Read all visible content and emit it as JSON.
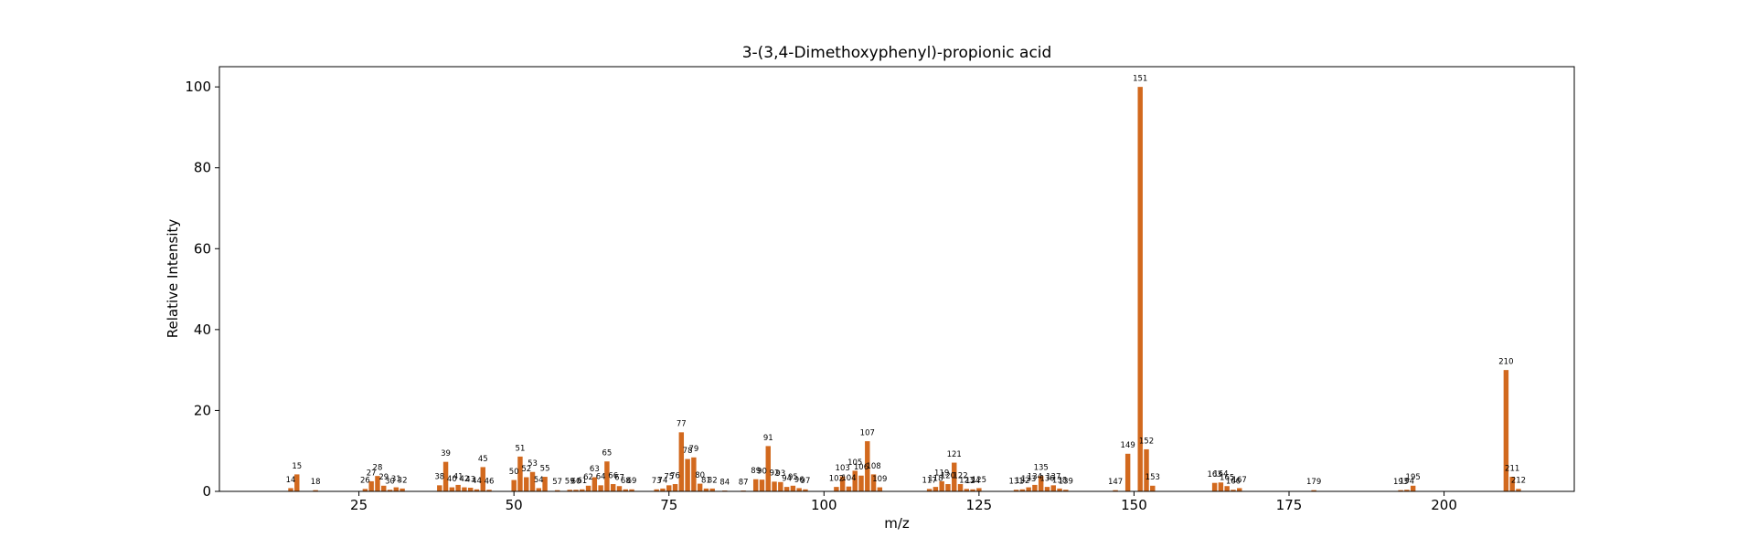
{
  "chart_data": {
    "type": "bar",
    "title": "3-(3,4-Dimethoxyphenyl)-propionic acid",
    "xlabel": "m/z",
    "ylabel": "Relative Intensity",
    "xlim": [
      2.5,
      221
    ],
    "ylim": [
      0,
      105
    ],
    "xticks": [
      25,
      50,
      75,
      100,
      125,
      150,
      175,
      200
    ],
    "yticks": [
      0,
      20,
      40,
      60,
      80,
      100
    ],
    "grid": false,
    "bar_color": "#d2691e",
    "series": [
      {
        "x": [
          14,
          15,
          18,
          26,
          27,
          28,
          29,
          30,
          31,
          32,
          38,
          39,
          40,
          41,
          42,
          43,
          44,
          45,
          46,
          50,
          51,
          52,
          53,
          54,
          55,
          57,
          59,
          60,
          61,
          62,
          63,
          64,
          65,
          66,
          67,
          68,
          69,
          73,
          74,
          75,
          76,
          77,
          78,
          79,
          80,
          81,
          82,
          84,
          87,
          89,
          90,
          91,
          92,
          93,
          94,
          95,
          96,
          97,
          102,
          103,
          104,
          105,
          106,
          107,
          108,
          109,
          117,
          118,
          119,
          120,
          121,
          122,
          123,
          124,
          125,
          131,
          132,
          133,
          134,
          135,
          136,
          137,
          138,
          139,
          147,
          149,
          151,
          152,
          153,
          163,
          164,
          165,
          166,
          167,
          179,
          193,
          194,
          195,
          210,
          211,
          212
        ],
        "values": [
          0.8,
          4.2,
          0.3,
          0.6,
          2.5,
          3.8,
          1.4,
          0.4,
          1.0,
          0.7,
          1.5,
          7.3,
          1.0,
          1.6,
          1.0,
          0.9,
          0.5,
          6.0,
          0.4,
          2.8,
          8.6,
          3.5,
          4.8,
          0.8,
          3.6,
          0.3,
          0.4,
          0.4,
          0.5,
          1.4,
          3.5,
          1.5,
          7.4,
          1.8,
          1.3,
          0.5,
          0.5,
          0.5,
          0.7,
          1.5,
          1.8,
          14.6,
          8.0,
          8.4,
          1.9,
          0.7,
          0.7,
          0.2,
          0.2,
          3.0,
          2.9,
          11.2,
          2.4,
          2.3,
          1.1,
          1.4,
          0.8,
          0.5,
          1.1,
          3.7,
          1.2,
          5.1,
          3.9,
          12.4,
          4.2,
          1.0,
          0.6,
          1.1,
          2.5,
          1.8,
          7.1,
          1.8,
          0.6,
          0.5,
          0.8,
          0.4,
          0.5,
          1.0,
          1.6,
          3.8,
          1.1,
          1.5,
          0.7,
          0.4,
          0.3,
          9.3,
          100.0,
          10.4,
          1.4,
          2.1,
          2.2,
          1.3,
          0.4,
          0.8,
          0.3,
          0.3,
          0.4,
          1.4,
          30.0,
          3.6,
          0.6
        ]
      }
    ],
    "labels": {
      "peak_label_offset": 1.5
    }
  }
}
